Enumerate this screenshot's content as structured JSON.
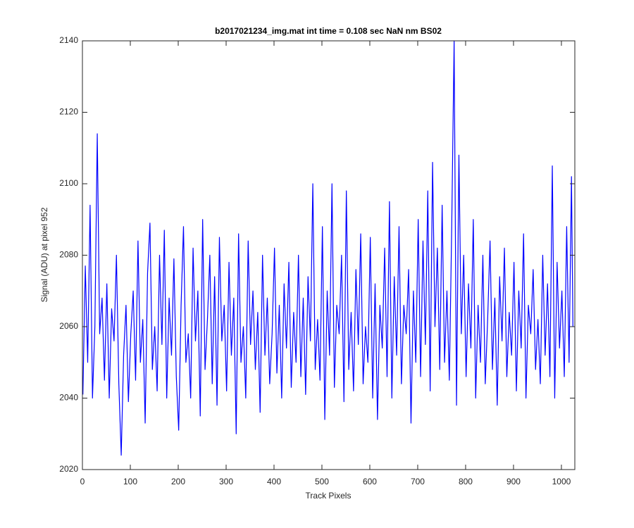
{
  "chart_data": {
    "type": "line",
    "title": "b2017021234_img.mat int time = 0.108 sec  NaN nm BS02",
    "x_label": "Track Pixels",
    "y_label": "Signal (ADU) at pixel 952",
    "xlim": [
      0,
      1028
    ],
    "ylim": [
      2020,
      2140
    ],
    "xticks": [
      0,
      100,
      200,
      300,
      400,
      500,
      600,
      700,
      800,
      900,
      1000
    ],
    "yticks": [
      2020,
      2040,
      2060,
      2080,
      2100,
      2120,
      2140
    ],
    "x": [
      1,
      6,
      11,
      16,
      21,
      26,
      31,
      36,
      41,
      46,
      51,
      56,
      61,
      66,
      71,
      76,
      81,
      86,
      91,
      96,
      101,
      106,
      111,
      116,
      121,
      126,
      131,
      136,
      141,
      146,
      151,
      156,
      161,
      166,
      171,
      176,
      181,
      186,
      191,
      196,
      201,
      206,
      211,
      216,
      221,
      226,
      231,
      236,
      241,
      246,
      251,
      256,
      261,
      266,
      271,
      276,
      281,
      286,
      291,
      296,
      301,
      306,
      311,
      316,
      321,
      326,
      331,
      336,
      341,
      346,
      351,
      356,
      361,
      366,
      371,
      376,
      381,
      386,
      391,
      396,
      401,
      406,
      411,
      416,
      421,
      426,
      431,
      436,
      441,
      446,
      451,
      456,
      461,
      466,
      471,
      476,
      481,
      486,
      491,
      496,
      501,
      506,
      511,
      516,
      521,
      526,
      531,
      536,
      541,
      546,
      551,
      556,
      561,
      566,
      571,
      576,
      581,
      586,
      591,
      596,
      601,
      606,
      611,
      616,
      621,
      626,
      631,
      636,
      641,
      646,
      651,
      656,
      661,
      666,
      671,
      676,
      681,
      686,
      691,
      696,
      701,
      706,
      711,
      716,
      721,
      726,
      731,
      736,
      741,
      746,
      751,
      756,
      761,
      766,
      771,
      776,
      781,
      786,
      791,
      796,
      801,
      806,
      811,
      816,
      821,
      826,
      831,
      836,
      841,
      846,
      851,
      856,
      861,
      866,
      871,
      876,
      881,
      886,
      891,
      896,
      901,
      906,
      911,
      916,
      921,
      926,
      931,
      936,
      941,
      946,
      951,
      956,
      961,
      966,
      971,
      976,
      981,
      986,
      991,
      996,
      1001,
      1006,
      1011,
      1016,
      1021,
      1024
    ],
    "series": [
      {
        "color": "#0000ff",
        "values": [
          2041,
          2077,
          2050,
          2094,
          2040,
          2060,
          2114,
          2058,
          2068,
          2045,
          2072,
          2040,
          2065,
          2056,
          2080,
          2044,
          2024,
          2052,
          2066,
          2039,
          2058,
          2070,
          2045,
          2084,
          2050,
          2062,
          2033,
          2075,
          2089,
          2048,
          2060,
          2042,
          2080,
          2055,
          2087,
          2040,
          2068,
          2052,
          2079,
          2046,
          2031,
          2066,
          2088,
          2050,
          2058,
          2040,
          2082,
          2056,
          2070,
          2035,
          2090,
          2048,
          2062,
          2080,
          2044,
          2074,
          2038,
          2085,
          2056,
          2066,
          2042,
          2078,
          2052,
          2068,
          2030,
          2086,
          2050,
          2060,
          2040,
          2084,
          2055,
          2070,
          2048,
          2064,
          2036,
          2080,
          2052,
          2068,
          2044,
          2058,
          2082,
          2047,
          2066,
          2040,
          2072,
          2054,
          2078,
          2043,
          2064,
          2050,
          2080,
          2046,
          2068,
          2041,
          2074,
          2056,
          2100,
          2048,
          2062,
          2045,
          2088,
          2034,
          2070,
          2052,
          2100,
          2043,
          2066,
          2058,
          2080,
          2039,
          2098,
          2048,
          2064,
          2042,
          2076,
          2055,
          2086,
          2044,
          2060,
          2050,
          2085,
          2040,
          2072,
          2034,
          2066,
          2054,
          2082,
          2046,
          2095,
          2040,
          2074,
          2052,
          2088,
          2044,
          2066,
          2058,
          2076,
          2033,
          2070,
          2050,
          2090,
          2046,
          2084,
          2055,
          2098,
          2042,
          2106,
          2060,
          2082,
          2048,
          2094,
          2050,
          2070,
          2045,
          2088,
          2140,
          2038,
          2108,
          2058,
          2080,
          2046,
          2072,
          2054,
          2090,
          2040,
          2066,
          2050,
          2080,
          2044,
          2062,
          2084,
          2048,
          2068,
          2038,
          2074,
          2056,
          2082,
          2046,
          2064,
          2052,
          2078,
          2042,
          2070,
          2054,
          2086,
          2040,
          2066,
          2058,
          2076,
          2048,
          2062,
          2044,
          2080,
          2052,
          2072,
          2046,
          2105,
          2040,
          2078,
          2054,
          2070,
          2046,
          2088,
          2050,
          2102,
          2060
        ]
      }
    ]
  }
}
